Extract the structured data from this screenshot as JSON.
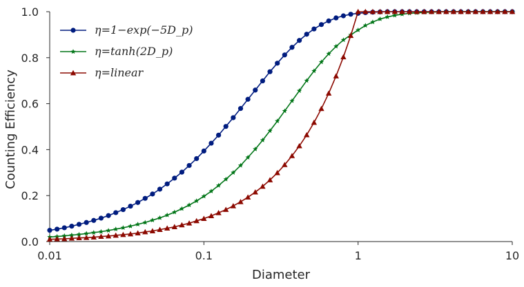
{
  "chart_data": {
    "type": "line",
    "xscale": "log",
    "xlabel": "Diameter",
    "ylabel": "Counting Efficiency",
    "xlim": [
      0.01,
      10
    ],
    "ylim": [
      0.0,
      1.0
    ],
    "xticks": [
      0.01,
      0.1,
      1,
      10
    ],
    "xtick_labels": [
      "0.01",
      "0.1",
      "1",
      "10"
    ],
    "yticks": [
      0.0,
      0.2,
      0.4,
      0.6,
      0.8,
      1.0
    ],
    "ytick_labels": [
      "0.0",
      "0.2",
      "0.4",
      "0.6",
      "0.8",
      "1.0"
    ],
    "grid": false,
    "legend": "top-left",
    "x": [
      0.01,
      0.01116,
      0.01245,
      0.01389,
      0.0155,
      0.0173,
      0.0193,
      0.02154,
      0.02404,
      0.02683,
      0.02994,
      0.03341,
      0.03728,
      0.0416,
      0.04642,
      0.0518,
      0.0578,
      0.0645,
      0.07197,
      0.08031,
      0.08962,
      0.1,
      0.1116,
      0.1245,
      0.1389,
      0.155,
      0.173,
      0.193,
      0.2154,
      0.2404,
      0.2683,
      0.2994,
      0.3341,
      0.3728,
      0.416,
      0.4642,
      0.518,
      0.578,
      0.645,
      0.7197,
      0.8031,
      0.8962,
      1.0,
      1.116,
      1.245,
      1.389,
      1.55,
      1.73,
      1.93,
      2.154,
      2.404,
      2.683,
      2.994,
      3.341,
      3.728,
      4.16,
      4.642,
      5.18,
      5.78,
      6.45,
      7.197,
      8.031,
      8.962,
      10.0
    ],
    "series": [
      {
        "name": "η=1−exp(−5Dp)",
        "legend_label": "η=1−exp(−5D_p)",
        "color": "#001c7f",
        "marker": "circle",
        "values": [
          0.049,
          0.054,
          0.06,
          0.067,
          0.075,
          0.083,
          0.092,
          0.102,
          0.113,
          0.126,
          0.139,
          0.154,
          0.17,
          0.188,
          0.207,
          0.228,
          0.251,
          0.276,
          0.302,
          0.331,
          0.361,
          0.394,
          0.428,
          0.463,
          0.501,
          0.539,
          0.579,
          0.619,
          0.659,
          0.699,
          0.739,
          0.776,
          0.812,
          0.845,
          0.875,
          0.902,
          0.925,
          0.944,
          0.96,
          0.973,
          0.982,
          0.989,
          0.993,
          0.996,
          0.998,
          0.999,
          1.0,
          1.0,
          1.0,
          1.0,
          1.0,
          1.0,
          1.0,
          1.0,
          1.0,
          1.0,
          1.0,
          1.0,
          1.0,
          1.0,
          1.0,
          1.0,
          1.0,
          1.0
        ]
      },
      {
        "name": "η=tanh(2Dp)",
        "legend_label": "η=tanh(2D_p)",
        "color": "#017517",
        "marker": "star",
        "values": [
          0.02,
          0.022,
          0.025,
          0.028,
          0.031,
          0.035,
          0.039,
          0.043,
          0.048,
          0.054,
          0.06,
          0.067,
          0.075,
          0.083,
          0.093,
          0.103,
          0.115,
          0.128,
          0.143,
          0.159,
          0.177,
          0.197,
          0.219,
          0.244,
          0.271,
          0.3,
          0.331,
          0.366,
          0.402,
          0.441,
          0.482,
          0.524,
          0.568,
          0.612,
          0.656,
          0.7,
          0.742,
          0.781,
          0.817,
          0.849,
          0.877,
          0.899,
          0.92,
          0.94,
          0.955,
          0.968,
          0.977,
          0.984,
          0.989,
          0.993,
          0.995,
          0.997,
          0.998,
          0.999,
          1.0,
          1.0,
          1.0,
          1.0,
          1.0,
          1.0,
          1.0,
          1.0,
          1.0,
          1.0
        ]
      },
      {
        "name": "η=linear",
        "legend_label": "η=linear",
        "color": "#8c0900",
        "marker": "triangle",
        "values": [
          0.01,
          0.011,
          0.012,
          0.014,
          0.016,
          0.017,
          0.019,
          0.022,
          0.024,
          0.027,
          0.03,
          0.033,
          0.037,
          0.042,
          0.046,
          0.052,
          0.058,
          0.064,
          0.072,
          0.08,
          0.09,
          0.1,
          0.112,
          0.125,
          0.139,
          0.155,
          0.173,
          0.193,
          0.215,
          0.24,
          0.268,
          0.299,
          0.334,
          0.373,
          0.416,
          0.464,
          0.518,
          0.578,
          0.645,
          0.72,
          0.803,
          0.896,
          1.0,
          1.0,
          1.0,
          1.0,
          1.0,
          1.0,
          1.0,
          1.0,
          1.0,
          1.0,
          1.0,
          1.0,
          1.0,
          1.0,
          1.0,
          1.0,
          1.0,
          1.0,
          1.0,
          1.0,
          1.0,
          1.0
        ]
      }
    ]
  }
}
